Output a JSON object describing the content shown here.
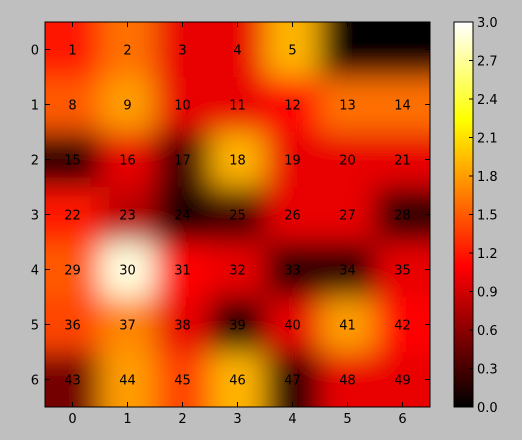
{
  "chart_data": {
    "type": "heatmap",
    "interpolation": "smooth",
    "colormap": "hot",
    "rows": [
      0,
      1,
      2,
      3,
      4,
      5,
      6
    ],
    "cols": [
      0,
      1,
      2,
      3,
      4,
      5,
      6
    ],
    "x_tick_labels": [
      "0",
      "1",
      "2",
      "3",
      "4",
      "5",
      "6"
    ],
    "y_tick_labels": [
      "0",
      "1",
      "2",
      "3",
      "4",
      "5",
      "6"
    ],
    "cell_labels": [
      [
        "1",
        "2",
        "3",
        "4",
        "5",
        "",
        ""
      ],
      [
        "8",
        "9",
        "10",
        "11",
        "12",
        "13",
        "14"
      ],
      [
        "15",
        "16",
        "17",
        "18",
        "19",
        "20",
        "21"
      ],
      [
        "22",
        "23",
        "24",
        "25",
        "26",
        "27",
        "28"
      ],
      [
        "29",
        "30",
        "31",
        "32",
        "33",
        "34",
        "35"
      ],
      [
        "36",
        "37",
        "38",
        "39",
        "40",
        "41",
        "42"
      ],
      [
        "43",
        "44",
        "45",
        "46",
        "47",
        "48",
        "49"
      ]
    ],
    "values": [
      [
        1.2,
        1.6,
        1.0,
        1.0,
        1.9,
        0.0,
        0.0
      ],
      [
        1.5,
        1.8,
        1.0,
        1.0,
        1.1,
        1.6,
        1.6
      ],
      [
        0.2,
        1.0,
        0.3,
        1.9,
        1.0,
        1.0,
        1.0
      ],
      [
        1.2,
        0.8,
        0.1,
        0.3,
        1.0,
        1.0,
        0.2
      ],
      [
        1.5,
        2.9,
        1.1,
        1.0,
        0.2,
        0.2,
        1.0
      ],
      [
        1.4,
        1.7,
        1.0,
        0.1,
        1.0,
        1.8,
        1.1
      ],
      [
        0.5,
        1.8,
        1.4,
        1.9,
        0.2,
        1.0,
        1.0
      ]
    ],
    "colorbar": {
      "vmin": 0.0,
      "vmax": 3.0,
      "tick_labels": [
        "0.0",
        "0.3",
        "0.6",
        "0.9",
        "1.2",
        "1.5",
        "1.8",
        "2.1",
        "2.4",
        "2.7",
        "3.0"
      ]
    },
    "grid": false
  }
}
